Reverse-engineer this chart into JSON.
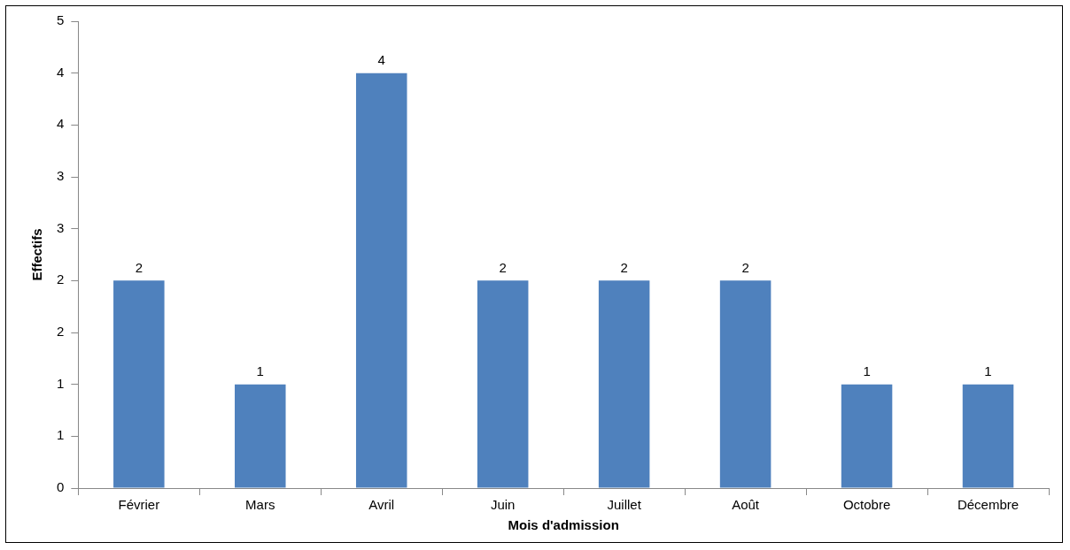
{
  "chart_data": {
    "type": "bar",
    "xlabel": "Mois d'admission",
    "ylabel": "Effectifs",
    "categories": [
      "Février",
      "Mars",
      "Avril",
      "Juin",
      "Juillet",
      "Août",
      "Octobre",
      "Décembre"
    ],
    "values": [
      2,
      1,
      4,
      2,
      2,
      2,
      1,
      1
    ],
    "color": "#4f81bd",
    "ylim": [
      0,
      4.5
    ],
    "yticks": [
      0,
      {
        "value": 0.5,
        "label": "1"
      },
      1,
      {
        "value": 1.5,
        "label": "2"
      },
      2,
      {
        "value": 2.5,
        "label": "3"
      },
      3,
      {
        "value": 3.5,
        "label": "4"
      },
      4,
      {
        "value": 4.5,
        "label": "5"
      }
    ],
    "grid": false,
    "legend": false,
    "data_labels": true
  }
}
